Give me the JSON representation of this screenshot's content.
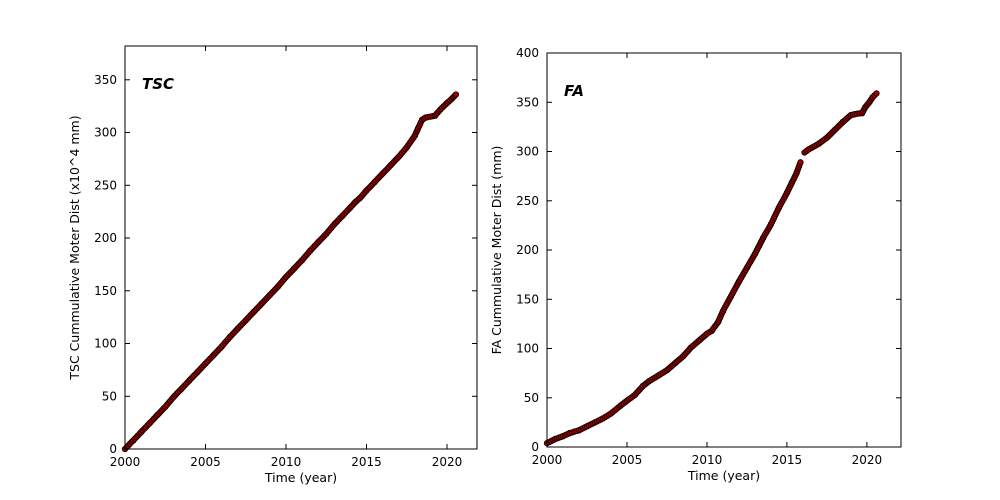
{
  "figure": {
    "background": "#ffffff",
    "axis_color": "#000000",
    "text_color": "#000000"
  },
  "chart_data": [
    {
      "id": "tsc",
      "type": "scatter",
      "panel_label": "TSC",
      "xlabel": "Time (year)",
      "ylabel": "TSC Cummulative Moter Dist (x10^4 mm)",
      "xlim": [
        2000,
        2021.86
      ],
      "ylim": [
        0,
        382
      ],
      "xticks": [
        2000,
        2005,
        2010,
        2015,
        2020
      ],
      "yticks": [
        0,
        50,
        100,
        150,
        200,
        250,
        300,
        350
      ],
      "grid": false,
      "legend": null,
      "marker": {
        "shape": "circle",
        "fill": "#9f0000",
        "edge": "#190000"
      },
      "series": [
        {
          "name": "TSC cumulative motor distance",
          "segments": [
            [
              [
                2000.0,
                0
              ],
              [
                2000.5,
                8
              ],
              [
                2001.0,
                16
              ],
              [
                2001.5,
                24
              ],
              [
                2002.0,
                32
              ],
              [
                2002.5,
                40
              ],
              [
                2003.0,
                49
              ],
              [
                2003.5,
                57
              ],
              [
                2004.0,
                65
              ],
              [
                2004.5,
                73
              ],
              [
                2005.0,
                81
              ],
              [
                2005.5,
                89
              ],
              [
                2006.0,
                97
              ],
              [
                2006.5,
                106
              ],
              [
                2007.0,
                114
              ],
              [
                2007.5,
                122
              ],
              [
                2008.0,
                130
              ],
              [
                2008.5,
                138
              ],
              [
                2009.0,
                146
              ],
              [
                2009.5,
                154
              ],
              [
                2010.0,
                163
              ],
              [
                2010.5,
                171
              ],
              [
                2011.0,
                179
              ],
              [
                2011.5,
                188
              ],
              [
                2012.0,
                196
              ],
              [
                2012.5,
                204
              ],
              [
                2013.0,
                213
              ],
              [
                2013.5,
                221
              ],
              [
                2014.0,
                229
              ],
              [
                2014.3,
                234
              ],
              [
                2014.6,
                238
              ],
              [
                2015.0,
                245
              ],
              [
                2015.5,
                253
              ],
              [
                2016.0,
                261
              ],
              [
                2016.5,
                269
              ],
              [
                2017.0,
                277
              ],
              [
                2017.5,
                286
              ],
              [
                2018.0,
                297
              ],
              [
                2018.2,
                304
              ],
              [
                2018.45,
                312
              ],
              [
                2018.65,
                314
              ],
              [
                2019.25,
                316
              ],
              [
                2019.6,
                322
              ],
              [
                2020.0,
                328
              ],
              [
                2020.3,
                332
              ],
              [
                2020.55,
                336
              ]
            ]
          ]
        }
      ]
    },
    {
      "id": "fa",
      "type": "scatter",
      "panel_label": "FA",
      "xlabel": "Time (year)",
      "ylabel": "FA Cummulative Moter Dist (mm)",
      "xlim": [
        2000,
        2022.13
      ],
      "ylim": [
        0,
        400
      ],
      "xticks": [
        2000,
        2005,
        2010,
        2015,
        2020
      ],
      "yticks": [
        0,
        50,
        100,
        150,
        200,
        250,
        300,
        350,
        400
      ],
      "grid": false,
      "legend": null,
      "marker": {
        "shape": "circle",
        "fill": "#9f0000",
        "edge": "#190000"
      },
      "series": [
        {
          "name": "FA cumulative motor distance",
          "segments": [
            [
              [
                2000.0,
                4
              ],
              [
                2000.5,
                8
              ],
              [
                2001.0,
                11
              ],
              [
                2001.4,
                14
              ],
              [
                2002.0,
                17
              ],
              [
                2002.5,
                21
              ],
              [
                2003.0,
                25
              ],
              [
                2003.5,
                29
              ],
              [
                2004.0,
                34
              ],
              [
                2004.6,
                42
              ],
              [
                2005.0,
                47
              ],
              [
                2005.5,
                53
              ],
              [
                2006.0,
                62
              ],
              [
                2006.4,
                67
              ],
              [
                2007.0,
                73
              ],
              [
                2007.5,
                78
              ],
              [
                2008.0,
                85
              ],
              [
                2008.5,
                92
              ],
              [
                2009.0,
                101
              ],
              [
                2009.5,
                108
              ],
              [
                2010.0,
                115
              ],
              [
                2010.3,
                118
              ],
              [
                2010.7,
                127
              ],
              [
                2011.0,
                138
              ],
              [
                2011.5,
                153
              ],
              [
                2012.0,
                168
              ],
              [
                2012.5,
                182
              ],
              [
                2013.0,
                196
              ],
              [
                2013.5,
                212
              ],
              [
                2014.0,
                226
              ],
              [
                2014.5,
                243
              ],
              [
                2015.0,
                258
              ],
              [
                2015.3,
                268
              ],
              [
                2015.6,
                278
              ],
              [
                2015.85,
                289
              ]
            ],
            [
              [
                2016.1,
                299
              ],
              [
                2016.35,
                302
              ],
              [
                2017.0,
                308
              ],
              [
                2017.5,
                314
              ],
              [
                2018.0,
                322
              ],
              [
                2018.5,
                330
              ],
              [
                2019.0,
                337
              ],
              [
                2019.25,
                338
              ],
              [
                2019.7,
                339
              ],
              [
                2019.9,
                345
              ],
              [
                2020.15,
                350
              ],
              [
                2020.35,
                355
              ],
              [
                2020.6,
                359
              ]
            ]
          ]
        }
      ]
    }
  ]
}
